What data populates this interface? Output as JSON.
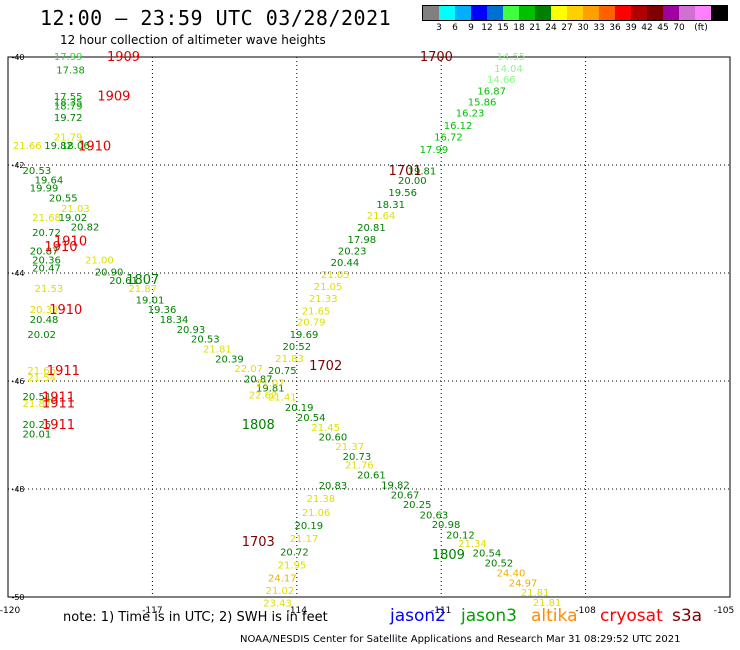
{
  "title": "12:00 – 23:59 UTC 03/28/2021",
  "subtitle": "12 hour collection of altimeter wave heights",
  "color_scale": {
    "unit": "(ft)",
    "colors": [
      "#808080",
      "#00ffff",
      "#00b0ff",
      "#0000ff",
      "#0070d0",
      "#40ff40",
      "#00c000",
      "#008000",
      "#ffff00",
      "#ffd000",
      "#ffa000",
      "#ff6000",
      "#ff0000",
      "#b00000",
      "#800000",
      "#a000a0",
      "#d070d0",
      "#ff80ff",
      "#000000"
    ],
    "labels": [
      "3",
      "6",
      "9",
      "12",
      "15",
      "18",
      "21",
      "24",
      "27",
      "30",
      "33",
      "36",
      "39",
      "42",
      "45",
      "70",
      "(ft)"
    ]
  },
  "note": "note:  1) Time is in UTC; 2) SWH is in feet",
  "legend": [
    {
      "label": "jason2",
      "color": "#0000ff"
    },
    {
      "label": "jason3",
      "color": "#00a000"
    },
    {
      "label": "altika",
      "color": "#ff8c00"
    },
    {
      "label": "cryosat",
      "color": "#ff0000"
    },
    {
      "label": "s3a",
      "color": "#800000"
    }
  ],
  "credit": "NOAA/NESDIS Center for Satellite Applications and Research    Mar 31 08:29:52 UTC 2021",
  "chart_data": {
    "type": "scatter",
    "x_axis": {
      "range": [
        -120,
        -105
      ],
      "ticks": [
        -120,
        -117,
        -114,
        -111,
        -108,
        -105
      ],
      "tick_labels": [
        "-120",
        "-117",
        "-114",
        "-111",
        "-108",
        "-105"
      ]
    },
    "y_axis": {
      "range": [
        -50,
        -40
      ],
      "ticks": [
        -40,
        -42,
        -44,
        -46,
        -48,
        -50
      ],
      "tick_labels": [
        "-40",
        "-42",
        "-44",
        "-46",
        "-48",
        "-50"
      ]
    },
    "grid": true,
    "time_labels": [
      {
        "text": "1909",
        "lon": -117.6,
        "lat": -39.98,
        "color": "#e00000"
      },
      {
        "text": "1909",
        "lon": -117.8,
        "lat": -40.71,
        "color": "#e00000"
      },
      {
        "text": "1910",
        "lon": -118.2,
        "lat": -41.64,
        "color": "#e00000"
      },
      {
        "text": "1910",
        "lon": -118.7,
        "lat": -43.4,
        "color": "#e00000"
      },
      {
        "text": "1910",
        "lon": -118.9,
        "lat": -43.5,
        "color": "#e00000"
      },
      {
        "text": "1910",
        "lon": -118.8,
        "lat": -44.67,
        "color": "#e00000"
      },
      {
        "text": "1911",
        "lon": -118.85,
        "lat": -45.8,
        "color": "#e00000"
      },
      {
        "text": "1911",
        "lon": -118.95,
        "lat": -46.29,
        "color": "#e00000"
      },
      {
        "text": "1911",
        "lon": -118.95,
        "lat": -46.4,
        "color": "#e00000"
      },
      {
        "text": "1911",
        "lon": -118.95,
        "lat": -46.8,
        "color": "#e00000"
      },
      {
        "text": "1807",
        "lon": -117.2,
        "lat": -44.11,
        "color": "#008000"
      },
      {
        "text": "1808",
        "lon": -114.8,
        "lat": -46.8,
        "color": "#008000"
      },
      {
        "text": "1809",
        "lon": -110.85,
        "lat": -49.2,
        "color": "#008000"
      },
      {
        "text": "1700",
        "lon": -111.1,
        "lat": -39.98,
        "color": "#800000"
      },
      {
        "text": "1701",
        "lon": -111.75,
        "lat": -42.09,
        "color": "#800000"
      },
      {
        "text": "1702",
        "lon": -113.4,
        "lat": -45.7,
        "color": "#800000"
      },
      {
        "text": "1703",
        "lon": -114.8,
        "lat": -48.96,
        "color": "#800000"
      }
    ],
    "wave_heights": [
      {
        "v": "17.99",
        "lon": -118.75,
        "lat": -39.98,
        "color": "#40d040"
      },
      {
        "v": "17.38",
        "lon": -118.7,
        "lat": -40.23,
        "color": "#00a000"
      },
      {
        "v": "17.55",
        "lon": -118.75,
        "lat": -40.72,
        "color": "#00a000"
      },
      {
        "v": "18.35",
        "lon": -118.75,
        "lat": -40.82,
        "color": "#00a000"
      },
      {
        "v": "18.79",
        "lon": -118.75,
        "lat": -40.9,
        "color": "#00a000"
      },
      {
        "v": "19.72",
        "lon": -118.75,
        "lat": -41.11,
        "color": "#008000"
      },
      {
        "v": "21.79",
        "lon": -118.75,
        "lat": -41.47,
        "color": "#e0e000"
      },
      {
        "v": "21.66",
        "lon": -119.6,
        "lat": -41.63,
        "color": "#e0e000"
      },
      {
        "v": "19.82",
        "lon": -118.95,
        "lat": -41.63,
        "color": "#008000"
      },
      {
        "v": "18.06",
        "lon": -118.6,
        "lat": -41.63,
        "color": "#00a000"
      },
      {
        "v": "20.53",
        "lon": -119.4,
        "lat": -42.09,
        "color": "#008000"
      },
      {
        "v": "19.64",
        "lon": -119.15,
        "lat": -42.27,
        "color": "#008000"
      },
      {
        "v": "19.99",
        "lon": -119.25,
        "lat": -42.42,
        "color": "#008000"
      },
      {
        "v": "20.55",
        "lon": -118.85,
        "lat": -42.6,
        "color": "#008000"
      },
      {
        "v": "21.03",
        "lon": -118.6,
        "lat": -42.8,
        "color": "#e0e000"
      },
      {
        "v": "21.68",
        "lon": -119.2,
        "lat": -42.96,
        "color": "#e0e000"
      },
      {
        "v": "19.02",
        "lon": -118.65,
        "lat": -42.96,
        "color": "#008000"
      },
      {
        "v": "20.82",
        "lon": -118.4,
        "lat": -43.14,
        "color": "#008000"
      },
      {
        "v": "20.72",
        "lon": -119.2,
        "lat": -43.24,
        "color": "#008000"
      },
      {
        "v": "20.87",
        "lon": -119.25,
        "lat": -43.58,
        "color": "#008000"
      },
      {
        "v": "20.36",
        "lon": -119.2,
        "lat": -43.75,
        "color": "#008000"
      },
      {
        "v": "20.47",
        "lon": -119.2,
        "lat": -43.9,
        "color": "#008000"
      },
      {
        "v": "21.00",
        "lon": -118.1,
        "lat": -43.75,
        "color": "#e0e000"
      },
      {
        "v": "20.90",
        "lon": -117.9,
        "lat": -43.97,
        "color": "#008000"
      },
      {
        "v": "20.61",
        "lon": -117.6,
        "lat": -44.13,
        "color": "#008000"
      },
      {
        "v": "21.53",
        "lon": -119.15,
        "lat": -44.28,
        "color": "#e0e000"
      },
      {
        "v": "21.87",
        "lon": -117.2,
        "lat": -44.28,
        "color": "#e0e000"
      },
      {
        "v": "19.01",
        "lon": -117.05,
        "lat": -44.49,
        "color": "#008000"
      },
      {
        "v": "19.36",
        "lon": -116.8,
        "lat": -44.67,
        "color": "#008000"
      },
      {
        "v": "20.39",
        "lon": -119.25,
        "lat": -44.67,
        "color": "#e0e000"
      },
      {
        "v": "20.48",
        "lon": -119.25,
        "lat": -44.85,
        "color": "#008000"
      },
      {
        "v": "18.34",
        "lon": -116.55,
        "lat": -44.85,
        "color": "#008000"
      },
      {
        "v": "20.93",
        "lon": -116.2,
        "lat": -45.04,
        "color": "#008000"
      },
      {
        "v": "20.02",
        "lon": -119.3,
        "lat": -45.13,
        "color": "#008000"
      },
      {
        "v": "20.53",
        "lon": -115.9,
        "lat": -45.21,
        "color": "#008000"
      },
      {
        "v": "21.81",
        "lon": -115.65,
        "lat": -45.4,
        "color": "#e0e000"
      },
      {
        "v": "20.39",
        "lon": -115.4,
        "lat": -45.58,
        "color": "#008000"
      },
      {
        "v": "21.66",
        "lon": -119.3,
        "lat": -45.8,
        "color": "#e0e000"
      },
      {
        "v": "21.54",
        "lon": -119.3,
        "lat": -45.93,
        "color": "#e0e000"
      },
      {
        "v": "22.07",
        "lon": -115.0,
        "lat": -45.76,
        "color": "#e0e000"
      },
      {
        "v": "20.87",
        "lon": -114.8,
        "lat": -45.95,
        "color": "#008000"
      },
      {
        "v": "19.81",
        "lon": -114.55,
        "lat": -46.12,
        "color": "#008000"
      },
      {
        "v": "20.51",
        "lon": -119.4,
        "lat": -46.28,
        "color": "#008000"
      },
      {
        "v": "21.87",
        "lon": -119.4,
        "lat": -46.41,
        "color": "#e0e000"
      },
      {
        "v": "21.41",
        "lon": -114.3,
        "lat": -46.29,
        "color": "#e0e000"
      },
      {
        "v": "20.19",
        "lon": -113.95,
        "lat": -46.48,
        "color": "#008000"
      },
      {
        "v": "20.54",
        "lon": -113.7,
        "lat": -46.67,
        "color": "#008000"
      },
      {
        "v": "20.25",
        "lon": -119.4,
        "lat": -46.8,
        "color": "#008000"
      },
      {
        "v": "20.01",
        "lon": -119.4,
        "lat": -46.97,
        "color": "#008000"
      },
      {
        "v": "21.45",
        "lon": -113.4,
        "lat": -46.85,
        "color": "#e0e000"
      },
      {
        "v": "20.60",
        "lon": -113.25,
        "lat": -47.03,
        "color": "#008000"
      },
      {
        "v": "21.37",
        "lon": -112.9,
        "lat": -47.2,
        "color": "#e0e000"
      },
      {
        "v": "20.73",
        "lon": -112.75,
        "lat": -47.39,
        "color": "#008000"
      },
      {
        "v": "21.76",
        "lon": -112.7,
        "lat": -47.55,
        "color": "#e0e000"
      },
      {
        "v": "20.61",
        "lon": -112.45,
        "lat": -47.73,
        "color": "#008000"
      },
      {
        "v": "20.83",
        "lon": -113.25,
        "lat": -47.93,
        "color": "#008000"
      },
      {
        "v": "19.82",
        "lon": -111.95,
        "lat": -47.92,
        "color": "#008000"
      },
      {
        "v": "20.67",
        "lon": -111.75,
        "lat": -48.1,
        "color": "#008000"
      },
      {
        "v": "21.38",
        "lon": -113.5,
        "lat": -48.17,
        "color": "#e0e000"
      },
      {
        "v": "20.25",
        "lon": -111.5,
        "lat": -48.28,
        "color": "#008000"
      },
      {
        "v": "21.06",
        "lon": -113.6,
        "lat": -48.43,
        "color": "#e0e000"
      },
      {
        "v": "20.63",
        "lon": -111.15,
        "lat": -48.47,
        "color": "#008000"
      },
      {
        "v": "20.19",
        "lon": -113.75,
        "lat": -48.67,
        "color": "#008000"
      },
      {
        "v": "20.98",
        "lon": -110.9,
        "lat": -48.65,
        "color": "#008000"
      },
      {
        "v": "20.12",
        "lon": -110.6,
        "lat": -48.84,
        "color": "#008000"
      },
      {
        "v": "21.17",
        "lon": -113.85,
        "lat": -48.91,
        "color": "#e0e000"
      },
      {
        "v": "21.34",
        "lon": -110.35,
        "lat": -49.0,
        "color": "#e0e000"
      },
      {
        "v": "20.72",
        "lon": -114.05,
        "lat": -49.16,
        "color": "#008000"
      },
      {
        "v": "20.54",
        "lon": -110.05,
        "lat": -49.18,
        "color": "#008000"
      },
      {
        "v": "21.95",
        "lon": -114.1,
        "lat": -49.4,
        "color": "#e0e000"
      },
      {
        "v": "20.52",
        "lon": -109.8,
        "lat": -49.36,
        "color": "#008000"
      },
      {
        "v": "24.40",
        "lon": -109.55,
        "lat": -49.55,
        "color": "#f0b000"
      },
      {
        "v": "24.17",
        "lon": -114.3,
        "lat": -49.64,
        "color": "#f0b000"
      },
      {
        "v": "24.97",
        "lon": -109.3,
        "lat": -49.73,
        "color": "#f0b000"
      },
      {
        "v": "21.02",
        "lon": -114.35,
        "lat": -49.87,
        "color": "#e0e000"
      },
      {
        "v": "21.81",
        "lon": -109.05,
        "lat": -49.91,
        "color": "#e0e000"
      },
      {
        "v": "23.43",
        "lon": -114.4,
        "lat": -50.1,
        "color": "#e0e000"
      },
      {
        "v": "21.81",
        "lon": -108.8,
        "lat": -50.09,
        "color": "#e0e000"
      },
      {
        "v": "14.55",
        "lon": -109.55,
        "lat": -39.98,
        "color": "#80ff80"
      },
      {
        "v": "14.04",
        "lon": -109.6,
        "lat": -40.2,
        "color": "#80ff80"
      },
      {
        "v": "14.66",
        "lon": -109.75,
        "lat": -40.41,
        "color": "#80ff80"
      },
      {
        "v": "16.87",
        "lon": -109.95,
        "lat": -40.62,
        "color": "#00c000"
      },
      {
        "v": "15.86",
        "lon": -110.15,
        "lat": -40.82,
        "color": "#00c000"
      },
      {
        "v": "16.23",
        "lon": -110.4,
        "lat": -41.03,
        "color": "#00c000"
      },
      {
        "v": "16.12",
        "lon": -110.65,
        "lat": -41.26,
        "color": "#00c000"
      },
      {
        "v": "16.72",
        "lon": -110.85,
        "lat": -41.47,
        "color": "#00c000"
      },
      {
        "v": "17.99",
        "lon": -111.15,
        "lat": -41.7,
        "color": "#00c000"
      },
      {
        "v": "19.81",
        "lon": -111.4,
        "lat": -42.1,
        "color": "#008000"
      },
      {
        "v": "20.00",
        "lon": -111.6,
        "lat": -42.28,
        "color": "#008000"
      },
      {
        "v": "19.56",
        "lon": -111.8,
        "lat": -42.5,
        "color": "#008000"
      },
      {
        "v": "18.31",
        "lon": -112.05,
        "lat": -42.72,
        "color": "#008000"
      },
      {
        "v": "21.64",
        "lon": -112.25,
        "lat": -42.93,
        "color": "#e0e000"
      },
      {
        "v": "20.81",
        "lon": -112.45,
        "lat": -43.15,
        "color": "#008000"
      },
      {
        "v": "17.98",
        "lon": -112.65,
        "lat": -43.37,
        "color": "#008000"
      },
      {
        "v": "20.23",
        "lon": -112.85,
        "lat": -43.58,
        "color": "#008000"
      },
      {
        "v": "20.44",
        "lon": -113.0,
        "lat": -43.8,
        "color": "#008000"
      },
      {
        "v": "21.05",
        "lon": -113.2,
        "lat": -44.02,
        "color": "#e0e000"
      },
      {
        "v": "21.05",
        "lon": -113.35,
        "lat": -44.24,
        "color": "#e0e000"
      },
      {
        "v": "21.33",
        "lon": -113.45,
        "lat": -44.46,
        "color": "#e0e000"
      },
      {
        "v": "21.65",
        "lon": -113.6,
        "lat": -44.69,
        "color": "#e0e000"
      },
      {
        "v": "20.79",
        "lon": -113.7,
        "lat": -44.9,
        "color": "#e0e000"
      },
      {
        "v": "19.69",
        "lon": -113.85,
        "lat": -45.13,
        "color": "#008000"
      },
      {
        "v": "20.52",
        "lon": -114.0,
        "lat": -45.35,
        "color": "#008000"
      },
      {
        "v": "21.83",
        "lon": -114.15,
        "lat": -45.57,
        "color": "#e0e000"
      },
      {
        "v": "20.75",
        "lon": -114.3,
        "lat": -45.8,
        "color": "#008000"
      },
      {
        "v": "21.07",
        "lon": -114.55,
        "lat": -46.03,
        "color": "#e0e000"
      },
      {
        "v": "22.62",
        "lon": -114.7,
        "lat": -46.25,
        "color": "#e0e000"
      }
    ]
  }
}
